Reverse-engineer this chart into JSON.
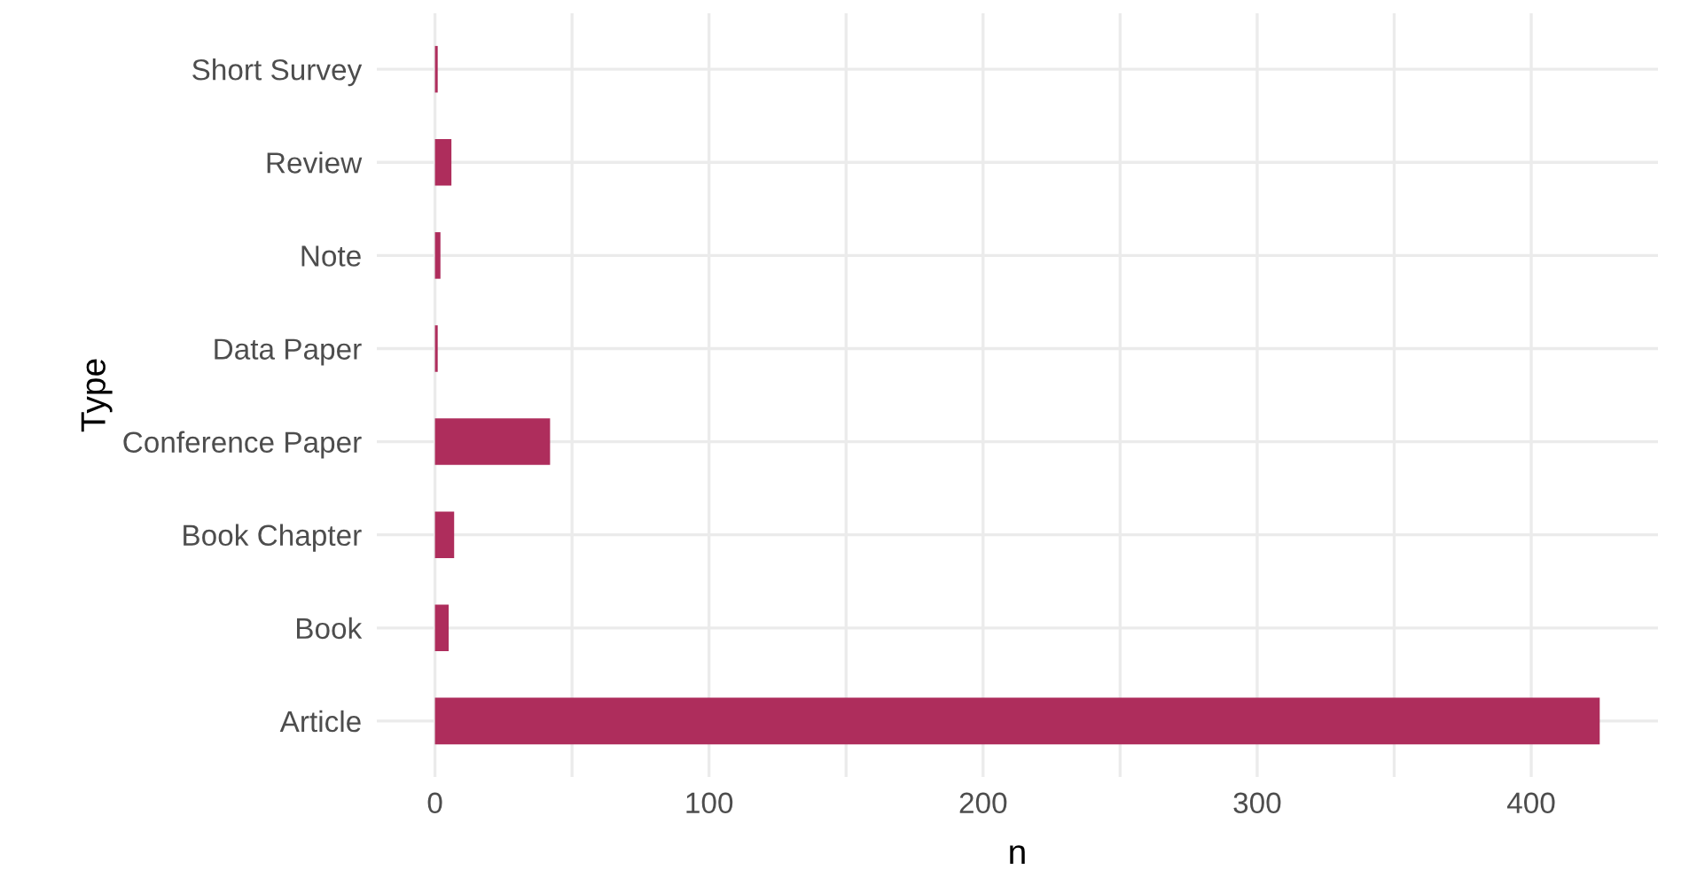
{
  "chart_data": {
    "type": "bar",
    "orientation": "horizontal",
    "xlabel": "n",
    "ylabel": "Type",
    "categories": [
      "Short Survey",
      "Review",
      "Note",
      "Data Paper",
      "Conference Paper",
      "Book Chapter",
      "Book",
      "Article"
    ],
    "values": [
      1,
      6,
      2,
      1,
      42,
      7,
      5,
      425
    ],
    "color": "#ae2d5c",
    "xlim": [
      -21.25,
      446.25
    ],
    "xticks": [
      0,
      {
        "value": 50,
        "label": null
      },
      100,
      {
        "value": 150,
        "label": null
      },
      200,
      {
        "value": 250,
        "label": null
      },
      300,
      {
        "value": 350,
        "label": null
      },
      400
    ],
    "grid": true
  }
}
